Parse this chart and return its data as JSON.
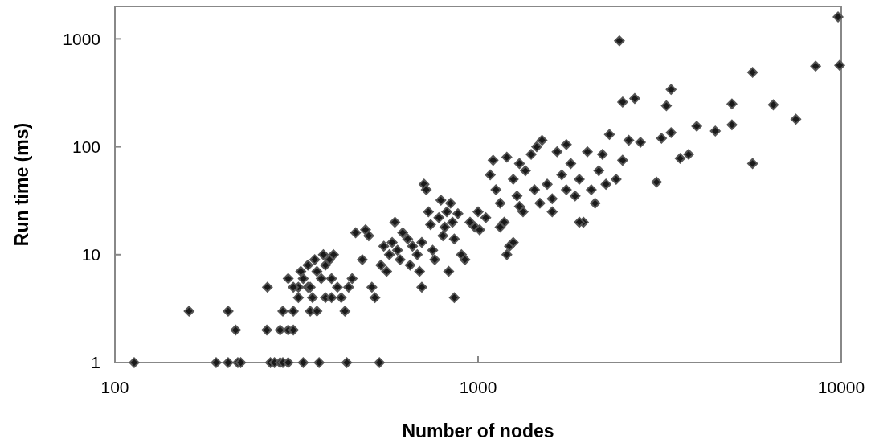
{
  "chart_data": {
    "type": "scatter",
    "xlabel": "Number of nodes",
    "ylabel": "Run time (ms)",
    "log": "xy",
    "marker": "diamond",
    "grid": false,
    "xlim": [
      100,
      10000
    ],
    "xticks": [
      100,
      1000,
      10000
    ],
    "ylim": [
      1,
      2000
    ],
    "yticks": [
      1,
      10,
      100,
      1000
    ],
    "series": [
      {
        "color": "#1a1a1a",
        "x": [
          113,
          190,
          205,
          218,
          222,
          268,
          275,
          285,
          290,
          300,
          330,
          365,
          435,
          535,
          215,
          262,
          285,
          300,
          310,
          160,
          205,
          290,
          310,
          345,
          360,
          263,
          320,
          340,
          350,
          380,
          395,
          860,
          300,
          310,
          320,
          325,
          330,
          340,
          345,
          355,
          360,
          370,
          375,
          380,
          390,
          395,
          400,
          410,
          420,
          430,
          440,
          450,
          460,
          480,
          490,
          500,
          510,
          520,
          540,
          550,
          560,
          570,
          580,
          590,
          600,
          610,
          620,
          640,
          650,
          660,
          680,
          690,
          700,
          710,
          720,
          730,
          740,
          750,
          760,
          780,
          790,
          800,
          810,
          820,
          830,
          840,
          850,
          860,
          880,
          900,
          920,
          950,
          980,
          1000,
          1010,
          1050,
          1080,
          1100,
          1120,
          1150,
          1180,
          1200,
          1220,
          1250,
          1280,
          1300,
          1330,
          1350,
          1400,
          1430,
          1450,
          1480,
          1500,
          1550,
          1600,
          1650,
          1700,
          1750,
          1800,
          1850,
          1900,
          1950,
          2000,
          2050,
          2100,
          2150,
          2200,
          2300,
          2400,
          2500,
          2450,
          2500,
          2600,
          2700,
          2800,
          3100,
          3200,
          3300,
          3400,
          3400,
          3600,
          3800,
          4000,
          4500,
          5000,
          5000,
          5700,
          5700,
          6500,
          7500,
          8500,
          9800,
          9900,
          700,
          1200,
          1250,
          1900,
          1150,
          1300,
          1600,
          1750,
          2250
        ],
        "values": [
          1,
          1,
          1,
          1,
          1,
          1,
          1,
          1,
          1,
          1,
          1,
          1,
          1,
          1,
          2,
          2,
          2,
          2,
          2,
          3,
          3,
          3,
          3,
          3,
          3,
          5,
          5,
          5,
          4,
          4,
          4,
          4,
          6,
          5,
          4,
          7,
          6,
          8,
          5,
          9,
          7,
          6,
          10,
          8,
          9,
          6,
          10,
          5,
          4,
          3,
          5,
          6,
          16,
          9,
          17,
          15,
          5,
          4,
          8,
          12,
          7,
          10,
          13,
          20,
          11,
          9,
          16,
          14,
          8,
          12,
          10,
          7,
          13,
          45,
          40,
          25,
          19,
          11,
          9,
          22,
          32,
          15,
          18,
          25,
          7,
          30,
          20,
          14,
          24,
          10,
          9,
          20,
          18,
          25,
          17,
          22,
          55,
          75,
          40,
          30,
          20,
          80,
          12,
          50,
          35,
          70,
          25,
          60,
          85,
          40,
          100,
          30,
          115,
          45,
          25,
          90,
          55,
          105,
          70,
          35,
          50,
          20,
          90,
          40,
          30,
          60,
          85,
          130,
          50,
          75,
          960,
          260,
          115,
          280,
          110,
          47,
          120,
          240,
          340,
          135,
          78,
          85,
          155,
          140,
          250,
          160,
          490,
          70,
          245,
          180,
          560,
          1600,
          570,
          5,
          10,
          13,
          20,
          18,
          28,
          33,
          40,
          45
        ]
      }
    ]
  }
}
